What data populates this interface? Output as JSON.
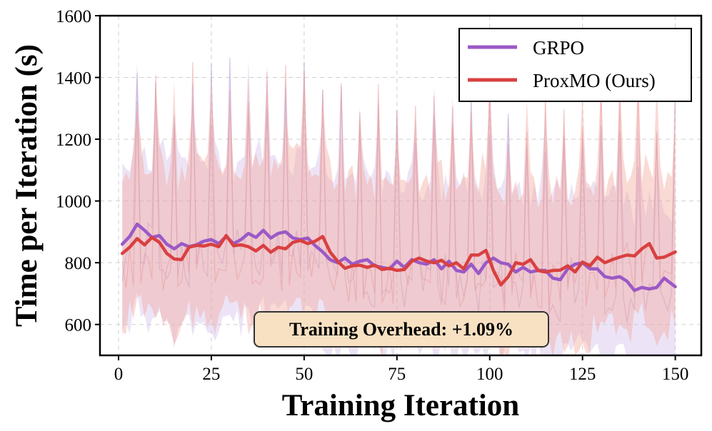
{
  "chart_data": {
    "type": "line",
    "xlabel": "Training Iteration",
    "ylabel": "Time per Iteration (s)",
    "xlim": [
      -5,
      157
    ],
    "ylim": [
      500,
      1600
    ],
    "xticks": [
      0,
      25,
      50,
      75,
      100,
      125,
      150
    ],
    "yticks": [
      600,
      800,
      1000,
      1200,
      1400,
      1600
    ],
    "grid": true,
    "legend_position": "top-right",
    "annotation": "Training Overhead: +1.09%",
    "series": [
      {
        "name": "GRPO",
        "color": "#9b59c6",
        "x": [
          1,
          3,
          5,
          7,
          9,
          11,
          13,
          15,
          17,
          19,
          21,
          23,
          25,
          27,
          29,
          31,
          33,
          35,
          37,
          39,
          41,
          43,
          45,
          47,
          49,
          51,
          53,
          55,
          57,
          59,
          61,
          63,
          65,
          67,
          69,
          71,
          73,
          75,
          77,
          79,
          81,
          83,
          85,
          87,
          89,
          91,
          93,
          95,
          97,
          99,
          101,
          103,
          105,
          107,
          109,
          111,
          113,
          115,
          117,
          119,
          121,
          123,
          125,
          127,
          129,
          131,
          133,
          135,
          137,
          139,
          141,
          143,
          145,
          147,
          150
        ],
        "values": [
          860,
          885,
          925,
          905,
          882,
          888,
          860,
          845,
          862,
          852,
          858,
          870,
          875,
          862,
          885,
          862,
          875,
          895,
          882,
          905,
          880,
          895,
          900,
          880,
          875,
          880,
          855,
          835,
          810,
          800,
          815,
          795,
          805,
          810,
          790,
          785,
          780,
          805,
          785,
          810,
          800,
          795,
          810,
          780,
          805,
          775,
          770,
          795,
          765,
          800,
          815,
          800,
          795,
          770,
          785,
          770,
          775,
          775,
          750,
          745,
          780,
          795,
          800,
          780,
          780,
          755,
          750,
          755,
          740,
          710,
          720,
          715,
          720,
          750,
          722
        ]
      },
      {
        "name": "ProxMO (Ours)",
        "color": "#d94040",
        "x": [
          1,
          3,
          5,
          7,
          9,
          11,
          13,
          15,
          17,
          19,
          21,
          23,
          25,
          27,
          29,
          31,
          33,
          35,
          37,
          39,
          41,
          43,
          45,
          47,
          49,
          51,
          53,
          55,
          57,
          59,
          61,
          63,
          65,
          67,
          69,
          71,
          73,
          75,
          77,
          79,
          81,
          83,
          85,
          87,
          89,
          91,
          93,
          95,
          97,
          99,
          101,
          103,
          105,
          107,
          109,
          111,
          113,
          115,
          117,
          119,
          121,
          123,
          125,
          127,
          129,
          131,
          133,
          135,
          137,
          139,
          141,
          143,
          145,
          147,
          150
        ],
        "values": [
          830,
          850,
          878,
          858,
          882,
          866,
          830,
          812,
          810,
          850,
          856,
          854,
          860,
          852,
          888,
          855,
          858,
          852,
          838,
          856,
          834,
          850,
          845,
          866,
          872,
          862,
          870,
          885,
          835,
          805,
          782,
          790,
          792,
          785,
          792,
          778,
          782,
          775,
          778,
          805,
          815,
          805,
          800,
          808,
          790,
          800,
          780,
          825,
          825,
          840,
          775,
          728,
          755,
          800,
          795,
          810,
          775,
          770,
          775,
          776,
          790,
          770,
          802,
          790,
          818,
          800,
          810,
          818,
          825,
          822,
          845,
          862,
          815,
          818,
          835
        ]
      }
    ]
  }
}
